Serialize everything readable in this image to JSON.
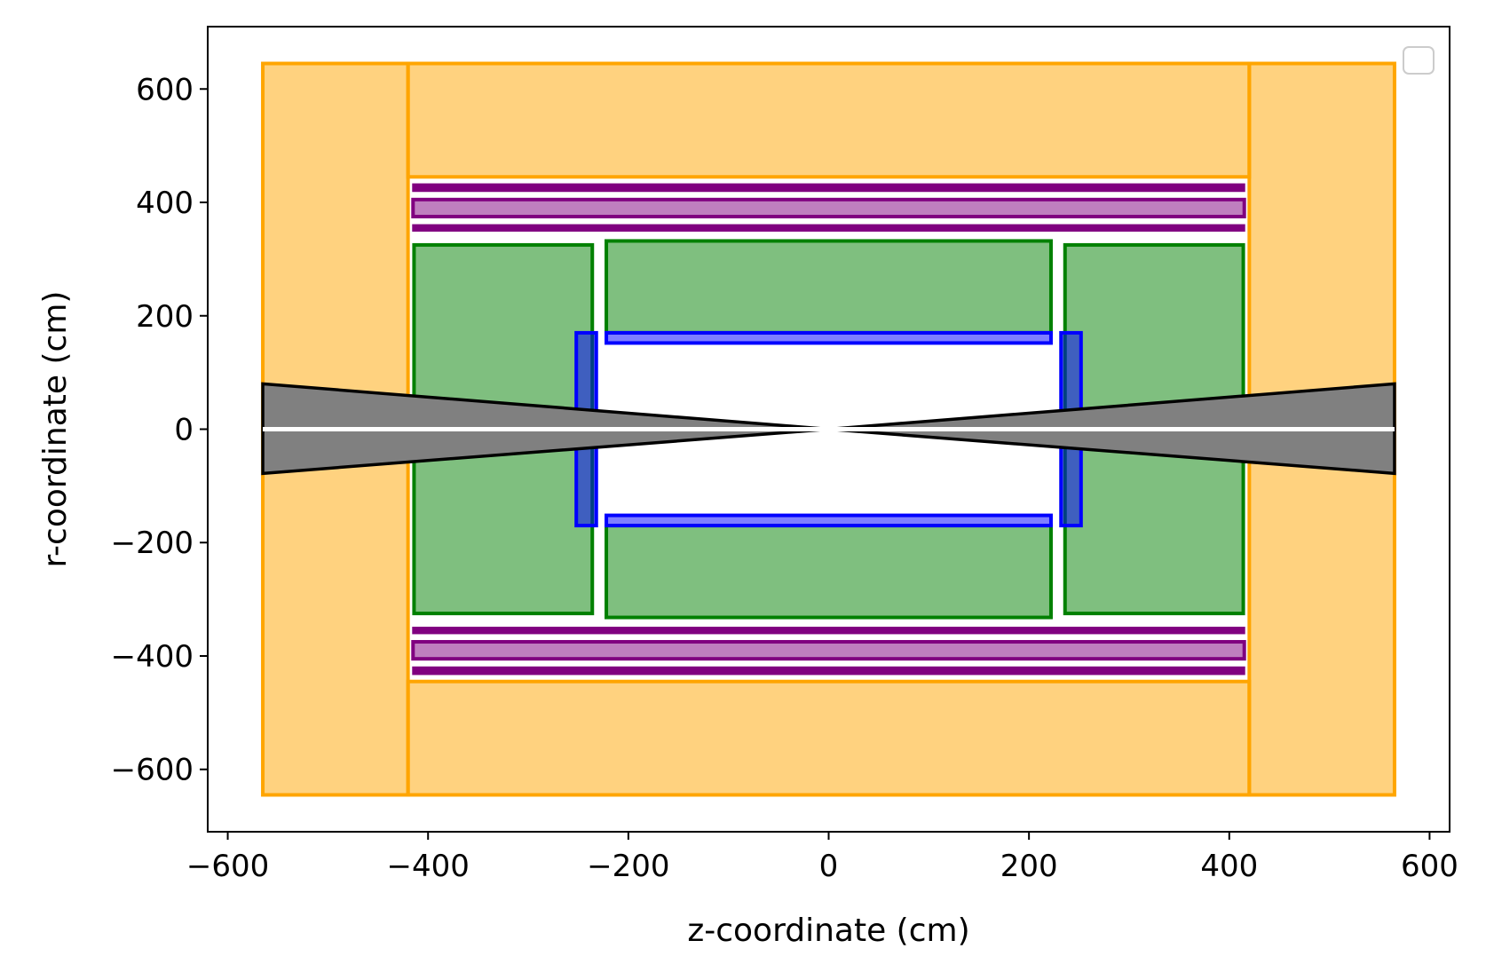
{
  "chart_data": {
    "type": "detector-layout",
    "title": "",
    "xlabel": "z-coordinate (cm)",
    "ylabel": "r-coordinate (cm)",
    "xlim": [
      -620,
      620
    ],
    "ylim": [
      -710,
      710
    ],
    "xticks": [
      -600,
      -400,
      -200,
      0,
      200,
      400,
      600
    ],
    "yticks": [
      -600,
      -400,
      -200,
      0,
      200,
      400,
      600
    ],
    "grid": false,
    "legend": "top-right (empty)",
    "colors": {
      "orange": "#ffa500",
      "green": "#008000",
      "blue": "#0000ff",
      "purple": "#800080",
      "gray": "#808080",
      "black": "#000000",
      "axis_line": "#ffffff"
    },
    "rects": [
      {
        "group": "muon-endcap",
        "color": "orange",
        "z": [
          -565,
          -420
        ],
        "r": [
          -645,
          645
        ]
      },
      {
        "group": "muon-endcap",
        "color": "orange",
        "z": [
          420,
          565
        ],
        "r": [
          -645,
          645
        ]
      },
      {
        "group": "muon-barrel",
        "color": "orange",
        "z": [
          -420,
          420
        ],
        "r": [
          445,
          645
        ]
      },
      {
        "group": "muon-barrel",
        "color": "orange",
        "z": [
          -420,
          420
        ],
        "r": [
          -645,
          -445
        ]
      },
      {
        "group": "solenoid",
        "color": "purple",
        "z": [
          -415,
          415
        ],
        "r": [
          350,
          360
        ],
        "style": "line"
      },
      {
        "group": "solenoid",
        "color": "purple",
        "z": [
          -415,
          415
        ],
        "r": [
          375,
          405
        ]
      },
      {
        "group": "solenoid",
        "color": "purple",
        "z": [
          -415,
          415
        ],
        "r": [
          420,
          432
        ],
        "style": "line"
      },
      {
        "group": "solenoid",
        "color": "purple",
        "z": [
          -415,
          415
        ],
        "r": [
          -360,
          -350
        ],
        "style": "line"
      },
      {
        "group": "solenoid",
        "color": "purple",
        "z": [
          -415,
          415
        ],
        "r": [
          -405,
          -375
        ]
      },
      {
        "group": "solenoid",
        "color": "purple",
        "z": [
          -415,
          415
        ],
        "r": [
          -432,
          -420
        ],
        "style": "line"
      },
      {
        "group": "calorimeter-barrel",
        "color": "green",
        "z": [
          -222,
          222
        ],
        "r": [
          170,
          332
        ]
      },
      {
        "group": "calorimeter-barrel",
        "color": "green",
        "z": [
          -222,
          222
        ],
        "r": [
          -332,
          -170
        ]
      },
      {
        "group": "calorimeter-endcap",
        "color": "green",
        "z": [
          -414,
          -236
        ],
        "r": [
          -325,
          325
        ]
      },
      {
        "group": "calorimeter-endcap",
        "color": "green",
        "z": [
          236,
          414
        ],
        "r": [
          -325,
          325
        ]
      },
      {
        "group": "tracker-barrel",
        "color": "blue",
        "z": [
          -222,
          222
        ],
        "r": [
          152,
          170
        ]
      },
      {
        "group": "tracker-barrel",
        "color": "blue",
        "z": [
          -222,
          222
        ],
        "r": [
          -170,
          -152
        ]
      },
      {
        "group": "tracker-endcap",
        "color": "blue",
        "z": [
          -252,
          -232
        ],
        "r": [
          -170,
          170
        ]
      },
      {
        "group": "tracker-endcap",
        "color": "blue",
        "z": [
          232,
          252
        ],
        "r": [
          -170,
          170
        ]
      }
    ],
    "cones": [
      {
        "group": "beam-cone",
        "color": "gray",
        "points": [
          [
            0,
            0
          ],
          [
            -565,
            80
          ],
          [
            -565,
            -78
          ]
        ]
      },
      {
        "group": "beam-cone",
        "color": "gray",
        "points": [
          [
            0,
            0
          ],
          [
            565,
            80
          ],
          [
            565,
            -78
          ]
        ]
      }
    ],
    "axis_line": {
      "z": [
        -565,
        565
      ],
      "r": 0
    }
  }
}
